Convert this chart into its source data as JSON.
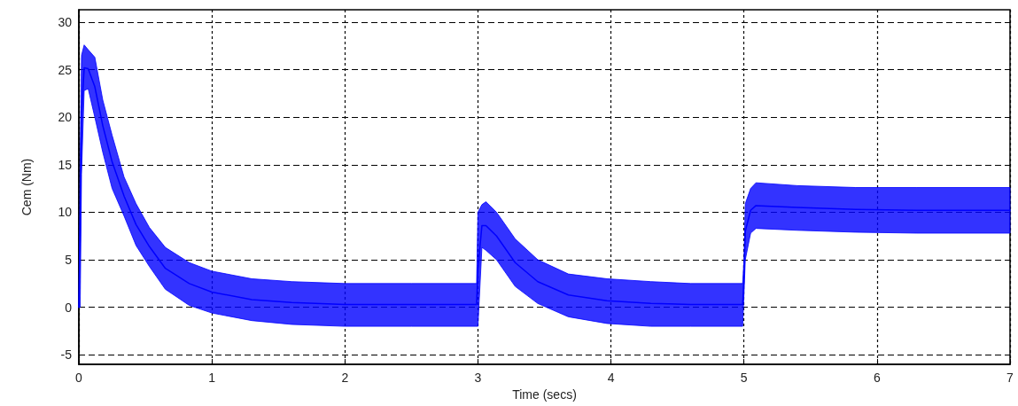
{
  "chart_data": {
    "type": "line",
    "xlabel": "Time (secs)",
    "ylabel": "Cem (Nm)",
    "xlim": [
      0,
      7
    ],
    "xticks": [
      0,
      1,
      2,
      3,
      4,
      5,
      6,
      7
    ],
    "ylim": [
      -6,
      31.3
    ],
    "yticks": [
      -5,
      0,
      5,
      10,
      15,
      20,
      25,
      30
    ],
    "grid": true,
    "marker": "none",
    "line_style": "solid",
    "series": [
      {
        "color": "#0000ff",
        "x": [
          0,
          0.01,
          0.02,
          0.04,
          0.07,
          0.12,
          0.18,
          0.25,
          0.34,
          0.43,
          0.53,
          0.65,
          0.83,
          1.0,
          1.3,
          1.6,
          2.0,
          2.5,
          2.99,
          3.0,
          3.03,
          3.06,
          3.14,
          3.28,
          3.45,
          3.68,
          3.97,
          4.3,
          4.6,
          4.99,
          5.0,
          5.01,
          5.05,
          5.09,
          5.4,
          5.84,
          6.3,
          7.0
        ],
        "values": [
          0,
          7.9,
          20.3,
          25.2,
          25.1,
          23.2,
          19.1,
          15.3,
          11.7,
          8.7,
          6.4,
          4.1,
          2.5,
          1.6,
          0.8,
          0.5,
          0.3,
          0.3,
          0.3,
          4.0,
          8.6,
          8.6,
          7.5,
          4.7,
          2.7,
          1.3,
          0.7,
          0.4,
          0.3,
          0.3,
          3.2,
          8.0,
          10.2,
          10.7,
          10.5,
          10.3,
          10.2,
          10.2
        ],
        "upper": [
          0,
          15.8,
          26.5,
          27.6,
          27.1,
          26.3,
          21.8,
          18.1,
          13.7,
          10.9,
          8.4,
          6.3,
          4.7,
          3.8,
          3.0,
          2.7,
          2.5,
          2.5,
          2.5,
          10.0,
          10.8,
          11.1,
          10.0,
          7.2,
          5.0,
          3.5,
          3.0,
          2.7,
          2.5,
          2.5,
          5.0,
          10.9,
          12.5,
          13.1,
          12.8,
          12.6,
          12.6,
          12.6
        ],
        "lower": [
          0,
          0,
          14,
          22.8,
          23,
          20,
          16.3,
          12.5,
          9.6,
          6.5,
          4.3,
          1.9,
          0.2,
          -0.6,
          -1.4,
          -1.8,
          -2.0,
          -2.0,
          -2.0,
          -2.0,
          6.3,
          6.0,
          5.0,
          2.2,
          0.4,
          -1.0,
          -1.7,
          -2.0,
          -2.0,
          -2.0,
          1.4,
          5.0,
          7.8,
          8.3,
          8.1,
          7.9,
          7.8,
          7.8
        ]
      }
    ]
  }
}
